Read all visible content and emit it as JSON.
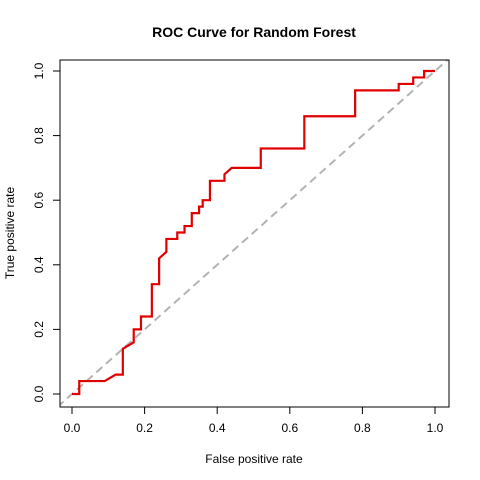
{
  "chart_data": {
    "type": "line",
    "title": "ROC Curve for Random Forest",
    "xlabel": "False positive rate",
    "ylabel": "True positive rate",
    "xlim": [
      0,
      1
    ],
    "ylim": [
      0,
      1
    ],
    "xticks": [
      "0.0",
      "0.2",
      "0.4",
      "0.6",
      "0.8",
      "1.0"
    ],
    "yticks": [
      "0.0",
      "0.2",
      "0.4",
      "0.6",
      "0.8",
      "1.0"
    ],
    "grid": false,
    "series": [
      {
        "color": "#e00000",
        "style": "solid",
        "x": [
          0,
          0.02,
          0.02,
          0.09,
          0.12,
          0.14,
          0.14,
          0.17,
          0.17,
          0.19,
          0.19,
          0.22,
          0.22,
          0.24,
          0.24,
          0.26,
          0.26,
          0.29,
          0.29,
          0.31,
          0.31,
          0.33,
          0.33,
          0.35,
          0.35,
          0.36,
          0.36,
          0.38,
          0.38,
          0.42,
          0.42,
          0.44,
          0.44,
          0.52,
          0.52,
          0.64,
          0.64,
          0.78,
          0.78,
          0.9,
          0.9,
          0.94,
          0.94,
          0.97,
          0.97,
          0.99,
          0.99,
          1.0
        ],
        "y": [
          0,
          0,
          0.04,
          0.04,
          0.06,
          0.06,
          0.14,
          0.16,
          0.2,
          0.2,
          0.24,
          0.24,
          0.34,
          0.34,
          0.42,
          0.44,
          0.48,
          0.48,
          0.5,
          0.5,
          0.52,
          0.52,
          0.56,
          0.56,
          0.58,
          0.58,
          0.6,
          0.6,
          0.66,
          0.66,
          0.68,
          0.7,
          0.7,
          0.7,
          0.76,
          0.76,
          0.86,
          0.86,
          0.94,
          0.94,
          0.96,
          0.96,
          0.98,
          0.98,
          1.0,
          1.0,
          1.0,
          1.0
        ]
      },
      {
        "color": "#b3b3b3",
        "style": "dashed",
        "x": [
          -0.04,
          1.04
        ],
        "y": [
          -0.04,
          1.04
        ]
      }
    ]
  }
}
